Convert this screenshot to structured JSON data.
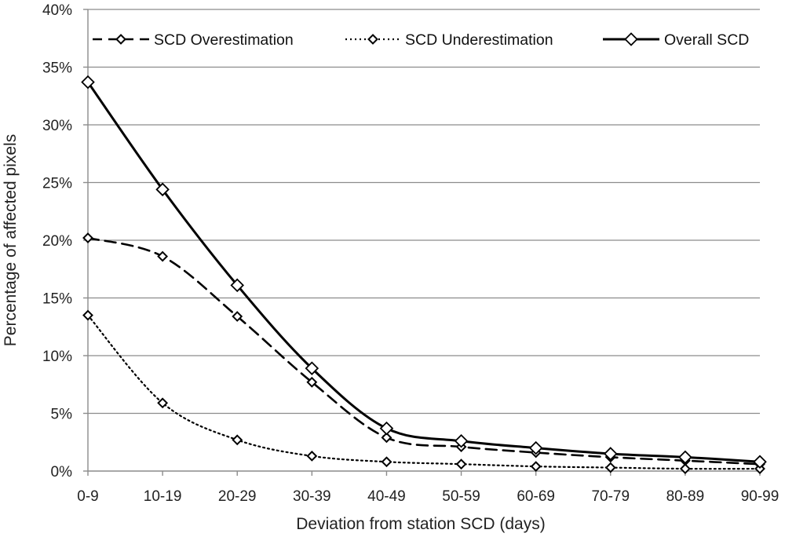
{
  "chart_data": {
    "type": "line",
    "title": "",
    "xlabel": "Deviation from station SCD (days)",
    "ylabel": "Percentage of affected pixels",
    "categories": [
      "0-9",
      "10-19",
      "20-29",
      "30-39",
      "40-49",
      "50-59",
      "60-69",
      "70-79",
      "80-89",
      "90-99"
    ],
    "ylim": [
      0,
      40
    ],
    "yticks": [
      0,
      5,
      10,
      15,
      20,
      25,
      30,
      35,
      40
    ],
    "ytick_labels": [
      "0%",
      "5%",
      "10%",
      "15%",
      "20%",
      "25%",
      "30%",
      "35%",
      "40%"
    ],
    "grid": "horizontal",
    "legend_position": "top",
    "series": [
      {
        "name": "SCD Overestimation",
        "style": "dashed",
        "marker": "small-diamond",
        "color": "#000000",
        "values": [
          20.2,
          18.6,
          13.4,
          7.7,
          2.9,
          2.1,
          1.6,
          1.2,
          0.9,
          0.6
        ]
      },
      {
        "name": "SCD Underestimation",
        "style": "dotted",
        "marker": "small-diamond",
        "color": "#000000",
        "values": [
          13.5,
          5.9,
          2.7,
          1.3,
          0.8,
          0.6,
          0.4,
          0.3,
          0.2,
          0.2
        ]
      },
      {
        "name": "Overall SCD",
        "style": "solid",
        "marker": "large-diamond",
        "color": "#000000",
        "values": [
          33.7,
          24.4,
          16.1,
          8.9,
          3.7,
          2.6,
          2.0,
          1.5,
          1.2,
          0.8
        ]
      }
    ]
  }
}
